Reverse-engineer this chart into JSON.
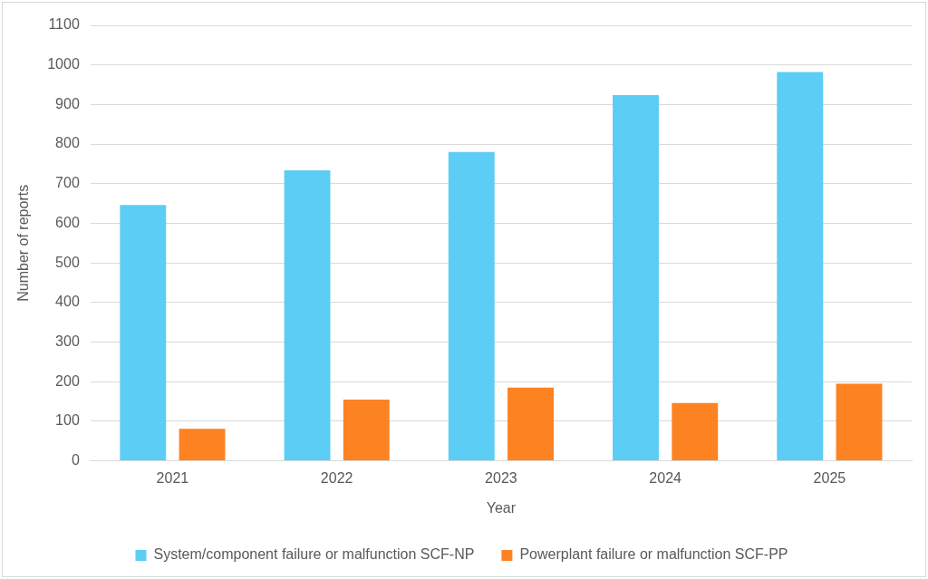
{
  "chart_data": {
    "type": "bar",
    "xlabel": "Year",
    "ylabel": "Number of reports",
    "categories": [
      "2021",
      "2022",
      "2023",
      "2024",
      "2025"
    ],
    "series": [
      {
        "name": "System/component failure or malfunction SCF-NP",
        "color": "#5ccdf4",
        "values": [
          646,
          734,
          780,
          924,
          982
        ]
      },
      {
        "name": "Powerplant failure or malfunction SCF-PP",
        "color": "#fd8222",
        "values": [
          81,
          155,
          185,
          146,
          195
        ]
      }
    ],
    "ylim": [
      0,
      1100
    ],
    "yticks": [
      0,
      100,
      200,
      300,
      400,
      500,
      600,
      700,
      800,
      900,
      1000,
      1100
    ],
    "grid": "y",
    "legend": "bottom"
  }
}
